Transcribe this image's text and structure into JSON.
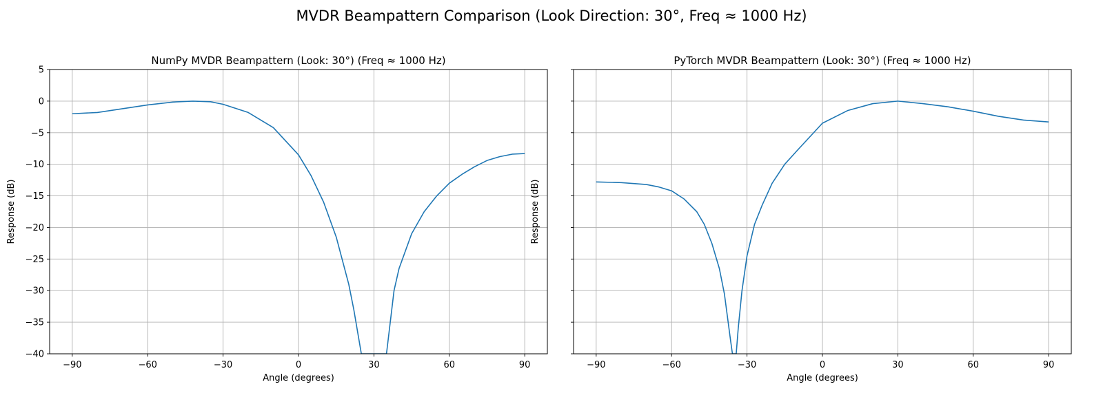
{
  "figure": {
    "suptitle": "MVDR Beampattern Comparison (Look Direction: 30°, Freq ≈ 1000 Hz)",
    "line_color": "#1f77b4",
    "grid_color": "#b0b0b0"
  },
  "chart_data": [
    {
      "type": "line",
      "title": "NumPy MVDR Beampattern (Look: 30°) (Freq ≈ 1000 Hz)",
      "xlabel": "Angle (degrees)",
      "ylabel": "Response (dB)",
      "xlim": [
        -99,
        99
      ],
      "ylim": [
        -40,
        5
      ],
      "xticks": [
        -90,
        -60,
        -30,
        0,
        30,
        60,
        90
      ],
      "yticks": [
        5,
        0,
        -5,
        -10,
        -15,
        -20,
        -25,
        -30,
        -35,
        -40
      ],
      "grid": true,
      "series": [
        {
          "x": [
            -90,
            -80,
            -70,
            -60,
            -50,
            -42,
            -35,
            -30,
            -20,
            -10,
            0,
            5,
            10,
            15,
            20,
            22,
            25,
            35,
            38,
            40,
            45,
            50,
            55,
            60,
            65,
            70,
            75,
            80,
            85,
            90
          ],
          "y": [
            -2.0,
            -1.8,
            -1.2,
            -0.6,
            -0.15,
            0.0,
            -0.1,
            -0.5,
            -1.8,
            -4.2,
            -8.5,
            -11.8,
            -16.0,
            -21.5,
            -29.0,
            -33.0,
            -40.0,
            -40.0,
            -30.0,
            -26.5,
            -21.0,
            -17.5,
            -15.0,
            -13.0,
            -11.6,
            -10.4,
            -9.4,
            -8.8,
            -8.4,
            -8.3
          ]
        }
      ]
    },
    {
      "type": "line",
      "title": "PyTorch MVDR Beampattern (Look: 30°) (Freq ≈ 1000 Hz)",
      "xlabel": "Angle (degrees)",
      "ylabel": "Response (dB)",
      "xlim": [
        -99,
        99
      ],
      "ylim": [
        -40,
        5
      ],
      "xticks": [
        -90,
        -60,
        -30,
        0,
        30,
        60,
        90
      ],
      "yticks": [
        5,
        0,
        -5,
        -10,
        -15,
        -20,
        -25,
        -30,
        -35,
        -40
      ],
      "grid": true,
      "series": [
        {
          "x": [
            -90,
            -80,
            -70,
            -65,
            -60,
            -55,
            -50,
            -47,
            -44,
            -41,
            -39,
            -37.5,
            -36.5,
            -35.8,
            -34.3,
            -33.5,
            -32,
            -30,
            -27,
            -24,
            -20,
            -15,
            -10,
            0,
            10,
            20,
            30,
            40,
            50,
            60,
            70,
            80,
            90
          ],
          "y": [
            -12.8,
            -12.9,
            -13.2,
            -13.6,
            -14.2,
            -15.5,
            -17.5,
            -19.5,
            -22.5,
            -26.5,
            -30.5,
            -35.0,
            -38.0,
            -40.0,
            -40.0,
            -36.0,
            -30.0,
            -24.5,
            -19.5,
            -16.5,
            -13.0,
            -10.0,
            -7.8,
            -3.5,
            -1.5,
            -0.4,
            0.0,
            -0.4,
            -0.9,
            -1.6,
            -2.4,
            -3.0,
            -3.3
          ]
        }
      ]
    }
  ]
}
